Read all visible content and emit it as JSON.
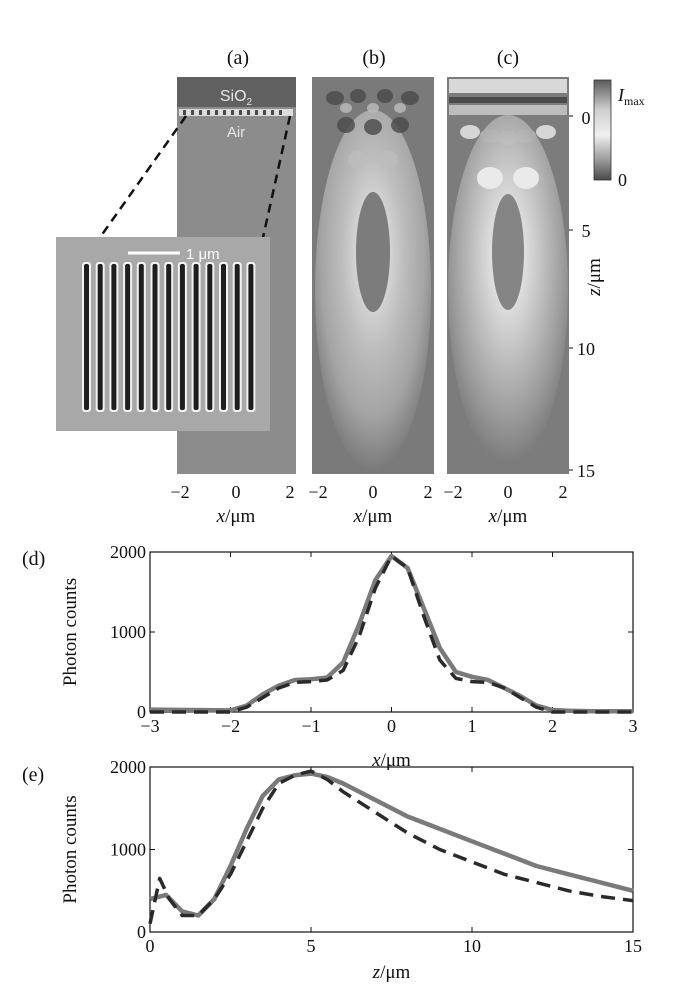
{
  "panels": {
    "a": {
      "label": "(a)",
      "material_top": "SiO",
      "material_top_sub": "2",
      "material_bottom": "Air",
      "scalebar": "1 μm",
      "xlabel_var": "x",
      "xlabel_unit": "/μm",
      "xticks": [
        "−2",
        "0",
        "2"
      ]
    },
    "b": {
      "label": "(b)",
      "xlabel_var": "x",
      "xlabel_unit": "/μm",
      "xticks": [
        "−2",
        "0",
        "2"
      ]
    },
    "c": {
      "label": "(c)",
      "xlabel_var": "x",
      "xlabel_unit": "/μm",
      "xticks": [
        "−2",
        "0",
        "2"
      ]
    },
    "colorbar": {
      "max_var": "I",
      "max_sub": "max",
      "min": "0"
    },
    "z_axis": {
      "var": "z",
      "unit": "/μm",
      "ticks": [
        "0",
        "5",
        "10",
        "15"
      ]
    },
    "d": {
      "label": "(d)"
    },
    "e": {
      "label": "(e)"
    }
  },
  "chart_data": [
    {
      "type": "line",
      "panel": "d",
      "xlabel_var": "x",
      "xlabel_unit": "/μm",
      "ylabel": "Photon counts",
      "xlim": [
        -3,
        3
      ],
      "ylim": [
        0,
        2000
      ],
      "xticks": [
        -3,
        -2,
        -1,
        0,
        1,
        2,
        3
      ],
      "yticks": [
        0,
        1000,
        2000
      ],
      "xtick_labels": [
        "−3",
        "−2",
        "−1",
        "0",
        "1",
        "2",
        "3"
      ],
      "series": [
        {
          "style": "solid",
          "x": [
            -3.0,
            -2.5,
            -2.0,
            -1.8,
            -1.6,
            -1.4,
            -1.2,
            -1.0,
            -0.8,
            -0.6,
            -0.4,
            -0.2,
            0.0,
            0.2,
            0.4,
            0.6,
            0.8,
            1.0,
            1.2,
            1.4,
            1.6,
            1.8,
            2.0,
            2.2,
            2.5,
            3.0
          ],
          "y": [
            30,
            25,
            20,
            80,
            220,
            330,
            400,
            410,
            430,
            620,
            1100,
            1650,
            1950,
            1800,
            1300,
            800,
            500,
            440,
            400,
            300,
            200,
            80,
            25,
            15,
            10,
            10
          ]
        },
        {
          "style": "dashed",
          "x": [
            -3.0,
            -2.5,
            -2.0,
            -1.8,
            -1.6,
            -1.4,
            -1.2,
            -1.0,
            -0.8,
            -0.6,
            -0.4,
            -0.2,
            0.0,
            0.2,
            0.4,
            0.6,
            0.8,
            1.0,
            1.2,
            1.4,
            1.6,
            1.8,
            2.0,
            2.2,
            2.5,
            3.0
          ],
          "y": [
            0,
            0,
            0,
            60,
            180,
            300,
            370,
            380,
            400,
            520,
            950,
            1550,
            1950,
            1800,
            1200,
            650,
            420,
            380,
            370,
            300,
            180,
            60,
            0,
            0,
            0,
            0
          ]
        }
      ]
    },
    {
      "type": "line",
      "panel": "e",
      "xlabel_var": "z",
      "xlabel_unit": "/μm",
      "ylabel": "Photon counts",
      "xlim": [
        0,
        15
      ],
      "ylim": [
        0,
        2000
      ],
      "xticks": [
        0,
        5,
        10,
        15
      ],
      "yticks": [
        0,
        1000,
        2000
      ],
      "xtick_labels": [
        "0",
        "5",
        "10",
        "15"
      ],
      "series": [
        {
          "style": "solid",
          "x": [
            0,
            0.5,
            1.0,
            1.5,
            2.0,
            2.5,
            3.0,
            3.5,
            4.0,
            4.5,
            5.0,
            5.5,
            6.0,
            7.0,
            8.0,
            9.0,
            10.0,
            11.0,
            12.0,
            13.0,
            14.0,
            15.0
          ],
          "y": [
            400,
            450,
            250,
            200,
            400,
            800,
            1250,
            1650,
            1850,
            1900,
            1920,
            1880,
            1800,
            1600,
            1400,
            1250,
            1100,
            950,
            800,
            700,
            600,
            500
          ]
        },
        {
          "style": "dashed",
          "x": [
            0,
            0.3,
            0.6,
            1.0,
            1.5,
            2.0,
            2.5,
            3.0,
            3.5,
            4.0,
            4.5,
            5.0,
            5.5,
            6.0,
            7.0,
            8.0,
            9.0,
            10.0,
            11.0,
            12.0,
            13.0,
            14.0,
            15.0
          ],
          "y": [
            100,
            650,
            400,
            200,
            200,
            400,
            700,
            1100,
            1500,
            1800,
            1900,
            1950,
            1850,
            1700,
            1450,
            1200,
            1000,
            850,
            700,
            600,
            500,
            430,
            380
          ]
        }
      ]
    }
  ]
}
